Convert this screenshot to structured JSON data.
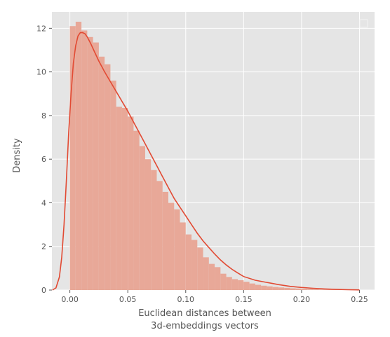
{
  "chart_data": {
    "type": "bar",
    "title": "",
    "xlabel_lines": [
      "Euclidean distances between",
      "3d-embeddings vectors"
    ],
    "ylabel": "Density",
    "xlim": [
      -0.0155,
      0.263
    ],
    "ylim": [
      0,
      12.75
    ],
    "x_ticks": [
      0.0,
      0.05,
      0.1,
      0.15,
      0.2,
      0.25
    ],
    "x_tick_labels": [
      "0.00",
      "0.05",
      "0.10",
      "0.15",
      "0.20",
      "0.25"
    ],
    "y_ticks": [
      0,
      2,
      4,
      6,
      8,
      10,
      12
    ],
    "y_tick_labels": [
      "0",
      "2",
      "4",
      "6",
      "8",
      "10",
      "12"
    ],
    "grid": true,
    "legend": "top-right (empty)",
    "colors": {
      "background": "#e5e5e5",
      "grid": "#ffffff",
      "bar_fill": "#e8a898",
      "kde_line": "#e24a33",
      "tick_text": "#555555"
    },
    "histogram": {
      "bin_edges": [
        0.0,
        0.005,
        0.01,
        0.015,
        0.02,
        0.025,
        0.03,
        0.035,
        0.04,
        0.045,
        0.05,
        0.055,
        0.06,
        0.065,
        0.07,
        0.075,
        0.08,
        0.085,
        0.09,
        0.095,
        0.1,
        0.105,
        0.11,
        0.115,
        0.12,
        0.125,
        0.13,
        0.135,
        0.14,
        0.145,
        0.15,
        0.155,
        0.16,
        0.165,
        0.17,
        0.175,
        0.18,
        0.185,
        0.19,
        0.195,
        0.2,
        0.205,
        0.21,
        0.215,
        0.22,
        0.225,
        0.23,
        0.235,
        0.24,
        0.245,
        0.25
      ],
      "density": [
        12.1,
        12.3,
        11.9,
        11.6,
        11.35,
        10.7,
        10.35,
        9.6,
        8.4,
        8.35,
        7.95,
        7.3,
        6.6,
        6.0,
        5.5,
        5.0,
        4.5,
        4.0,
        3.7,
        3.1,
        2.55,
        2.3,
        1.95,
        1.5,
        1.2,
        1.05,
        0.75,
        0.6,
        0.5,
        0.45,
        0.38,
        0.3,
        0.24,
        0.2,
        0.17,
        0.14,
        0.12,
        0.1,
        0.08,
        0.07,
        0.05,
        0.04,
        0.03,
        0.02,
        0.015,
        0.012,
        0.01,
        0.008,
        0.005,
        0.003
      ]
    },
    "kde": {
      "x": [
        -0.015,
        -0.012,
        -0.009,
        -0.007,
        -0.005,
        -0.003,
        -0.001,
        0.001,
        0.003,
        0.005,
        0.007,
        0.009,
        0.011,
        0.013,
        0.015,
        0.018,
        0.021,
        0.025,
        0.03,
        0.035,
        0.04,
        0.045,
        0.05,
        0.055,
        0.06,
        0.065,
        0.07,
        0.075,
        0.08,
        0.085,
        0.09,
        0.095,
        0.1,
        0.105,
        0.11,
        0.115,
        0.12,
        0.125,
        0.13,
        0.135,
        0.14,
        0.145,
        0.15,
        0.16,
        0.17,
        0.18,
        0.19,
        0.2,
        0.21,
        0.22,
        0.23,
        0.24,
        0.25
      ],
      "y": [
        0.0,
        0.1,
        0.6,
        1.5,
        3.0,
        5.0,
        7.2,
        9.0,
        10.4,
        11.2,
        11.65,
        11.8,
        11.8,
        11.75,
        11.6,
        11.3,
        10.95,
        10.5,
        10.0,
        9.55,
        9.1,
        8.65,
        8.2,
        7.7,
        7.2,
        6.7,
        6.2,
        5.7,
        5.2,
        4.7,
        4.2,
        3.8,
        3.4,
        3.0,
        2.6,
        2.25,
        1.95,
        1.65,
        1.38,
        1.15,
        0.95,
        0.78,
        0.62,
        0.45,
        0.35,
        0.25,
        0.17,
        0.12,
        0.08,
        0.05,
        0.03,
        0.015,
        0.005
      ]
    }
  }
}
